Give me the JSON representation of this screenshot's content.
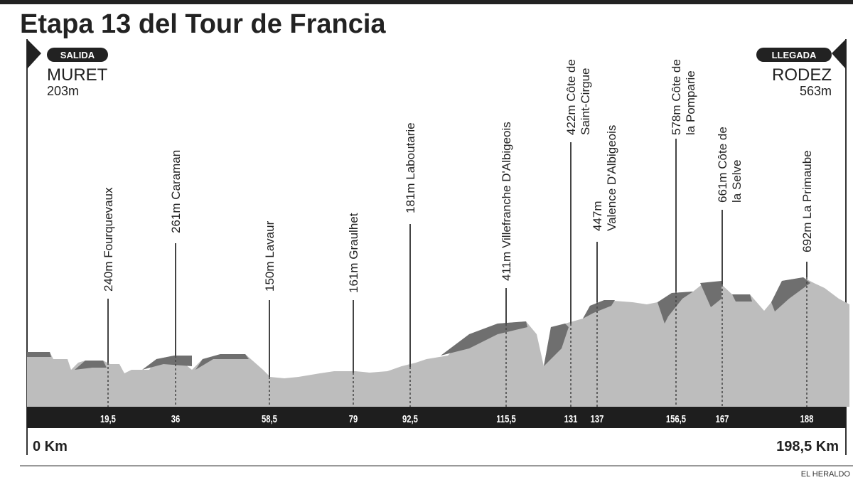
{
  "header": {
    "title": "Etapa 13 del Tour de Francia"
  },
  "start": {
    "badge": "SALIDA",
    "town": "MURET",
    "altitude": "203m"
  },
  "finish": {
    "badge": "LLEGADA",
    "town": "RODEZ",
    "altitude": "563m"
  },
  "waypoints": [
    {
      "lines": [
        "240m Fourquevaux"
      ],
      "km": "19,5"
    },
    {
      "lines": [
        "261m Caraman"
      ],
      "km": "36"
    },
    {
      "lines": [
        "150m Lavaur"
      ],
      "km": "58,5"
    },
    {
      "lines": [
        "161m Graulhet"
      ],
      "km": "79"
    },
    {
      "lines": [
        "181m Laboutarie"
      ],
      "km": "92,5"
    },
    {
      "lines": [
        "411m Villefranche D'Albigeois"
      ],
      "km": "115,5"
    },
    {
      "lines": [
        "422m Côte de",
        "Saint-Cirgue"
      ],
      "km": "131"
    },
    {
      "lines": [
        "447m",
        "Valence D'Albigeois"
      ],
      "km": "137"
    },
    {
      "lines": [
        "578m Côte de",
        "la Pomparie"
      ],
      "km": "156,5"
    },
    {
      "lines": [
        "661m Côte de",
        "la Selve"
      ],
      "km": "167"
    },
    {
      "lines": [
        "692m La Primaube"
      ],
      "km": "188"
    }
  ],
  "distance": {
    "start": "0 Km",
    "end": "198,5 Km"
  },
  "credit": "EL HERALDO"
}
